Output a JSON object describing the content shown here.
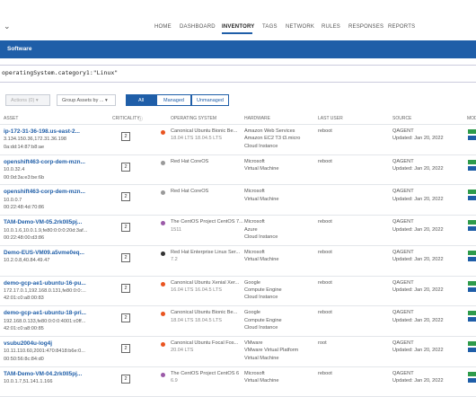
{
  "nav": {
    "items": [
      "HOME",
      "DASHBOARD",
      "INVENTORY",
      "TAGS",
      "NETWORK",
      "RULES",
      "RESPONSES",
      "REPORTS"
    ],
    "active": 2
  },
  "tab": "Software",
  "search": "operatingSystem.category1:\"Linux\"",
  "toolbar": {
    "actions": "Actions (0)",
    "group": "Group Assets by ...",
    "filters": [
      "All",
      "Managed",
      "Unmanaged"
    ],
    "active_filter": 0
  },
  "table": {
    "columns": [
      "ASSET",
      "CRITICALITY",
      "OPERATING SYSTEM",
      "HARDWARE",
      "LAST USER",
      "SOURCE",
      "MOD"
    ],
    "rows": [
      {
        "name": "ip-172-31-36-198.us-east-2...",
        "details": [
          "3.134.150.36,172.31.36.198",
          "0a:dd:14:87:b8:ae"
        ],
        "criticality": 2,
        "os": [
          "Canonical Ubuntu Bionic Be...",
          "18.04 LTS 18.04.5 LTS"
        ],
        "hardware": [
          "Amazon Web Services",
          "Amazon EC2 T3 t3.micro",
          "Cloud Instance"
        ],
        "last_user": "reboot",
        "source": [
          "QAGENT",
          "Updated: Jan 20, 2022"
        ]
      },
      {
        "name": "openshift463-corp-dem-mzn...",
        "details": [
          "10.0.32.4",
          "00:0d:3a:e3:be:6b"
        ],
        "criticality": 2,
        "os": [
          "Red Hat CoreOS"
        ],
        "hardware": [
          "Microsoft",
          "Virtual Machine"
        ],
        "last_user": "reboot",
        "source": [
          "QAGENT",
          "Updated: Jan 20, 2022"
        ]
      },
      {
        "name": "openshift463-corp-dem-mzn...",
        "details": [
          "10.0.0.7",
          "00:22:48:4d:70:86"
        ],
        "criticality": 2,
        "os": [
          "Red Hat CoreOS"
        ],
        "hardware": [
          "Microsoft",
          "Virtual Machine"
        ],
        "last_user": null,
        "source": [
          "QAGENT",
          "Updated: Jan 20, 2022"
        ]
      },
      {
        "name": "TAM-Demo-VM-05.2rk0ll5pj...",
        "details": [
          "10.0.1.6,10.0.1.9,fe80:0:0:0:20d:3af...",
          "00:22:48:00:d3:86"
        ],
        "criticality": 2,
        "os": [
          "The CentOS Project CentOS 7...",
          "1511"
        ],
        "hardware": [
          "Microsoft",
          "Azure",
          "Cloud Instance"
        ],
        "last_user": "reboot",
        "source": [
          "QAGENT",
          "Updated: Jan 20, 2022"
        ]
      },
      {
        "name": "Demo-EUS-VM09.a5vme0eq...",
        "details": [
          "10.2.0.8,40.84.49.47"
        ],
        "criticality": 2,
        "os": [
          "Red Hat Enterprise Linux Ser...",
          "7.2"
        ],
        "hardware": [
          "Microsoft",
          "Virtual Machine"
        ],
        "last_user": "reboot",
        "source": [
          "QAGENT",
          "Updated: Jan 20, 2022"
        ]
      },
      {
        "name": "demo-gcp-ae1-ubuntu-16-pu...",
        "details": [
          "172.17.0.1,192.168.0.131,fe80:0:0:...",
          "42:01:c0:a8:00:83"
        ],
        "criticality": 2,
        "os": [
          "Canonical Ubuntu Xenial Xer...",
          "16.04 LTS 16.04.5 LTS"
        ],
        "hardware": [
          "Google",
          "Compute Engine",
          "Cloud Instance"
        ],
        "last_user": "reboot",
        "source": [
          "QAGENT",
          "Updated: Jan 20, 2022"
        ]
      },
      {
        "name": "demo-gcp-ae1-ubuntu-18-pri...",
        "details": [
          "192.168.0.133,fe80:0:0:0:4001:c0ff...",
          "42:01:c0:a8:00:85"
        ],
        "criticality": 2,
        "os": [
          "Canonical Ubuntu Bionic Be...",
          "18.04 LTS 18.04.5 LTS"
        ],
        "hardware": [
          "Google",
          "Compute Engine",
          "Cloud Instance"
        ],
        "last_user": "reboot",
        "source": [
          "QAGENT",
          "Updated: Jan 20, 2022"
        ]
      },
      {
        "name": "vsubu2004u-log4j",
        "details": [
          "10.11.110.60,2001:470:8418:b6e:0...",
          "00:50:56:8c:84:d0"
        ],
        "criticality": 2,
        "os": [
          "Canonical Ubuntu Focal Fos...",
          "20.04 LTS"
        ],
        "hardware": [
          "VMware",
          "VMware Virtual Platform",
          "Virtual Machine"
        ],
        "last_user": "root",
        "source": [
          "QAGENT",
          "Updated: Jan 20, 2022"
        ]
      },
      {
        "name": "TAM-Demo-VM-04.2rk0ll5pj...",
        "details": [
          "10.0.1.7,51.141.1.166"
        ],
        "criticality": 2,
        "os": [
          "The CentOS Project CentOS 6",
          "6.9"
        ],
        "hardware": [
          "Microsoft",
          "Virtual Machine"
        ],
        "last_user": "reboot",
        "source": [
          "QAGENT",
          "Updated: Jan 20, 2022"
        ]
      }
    ]
  }
}
